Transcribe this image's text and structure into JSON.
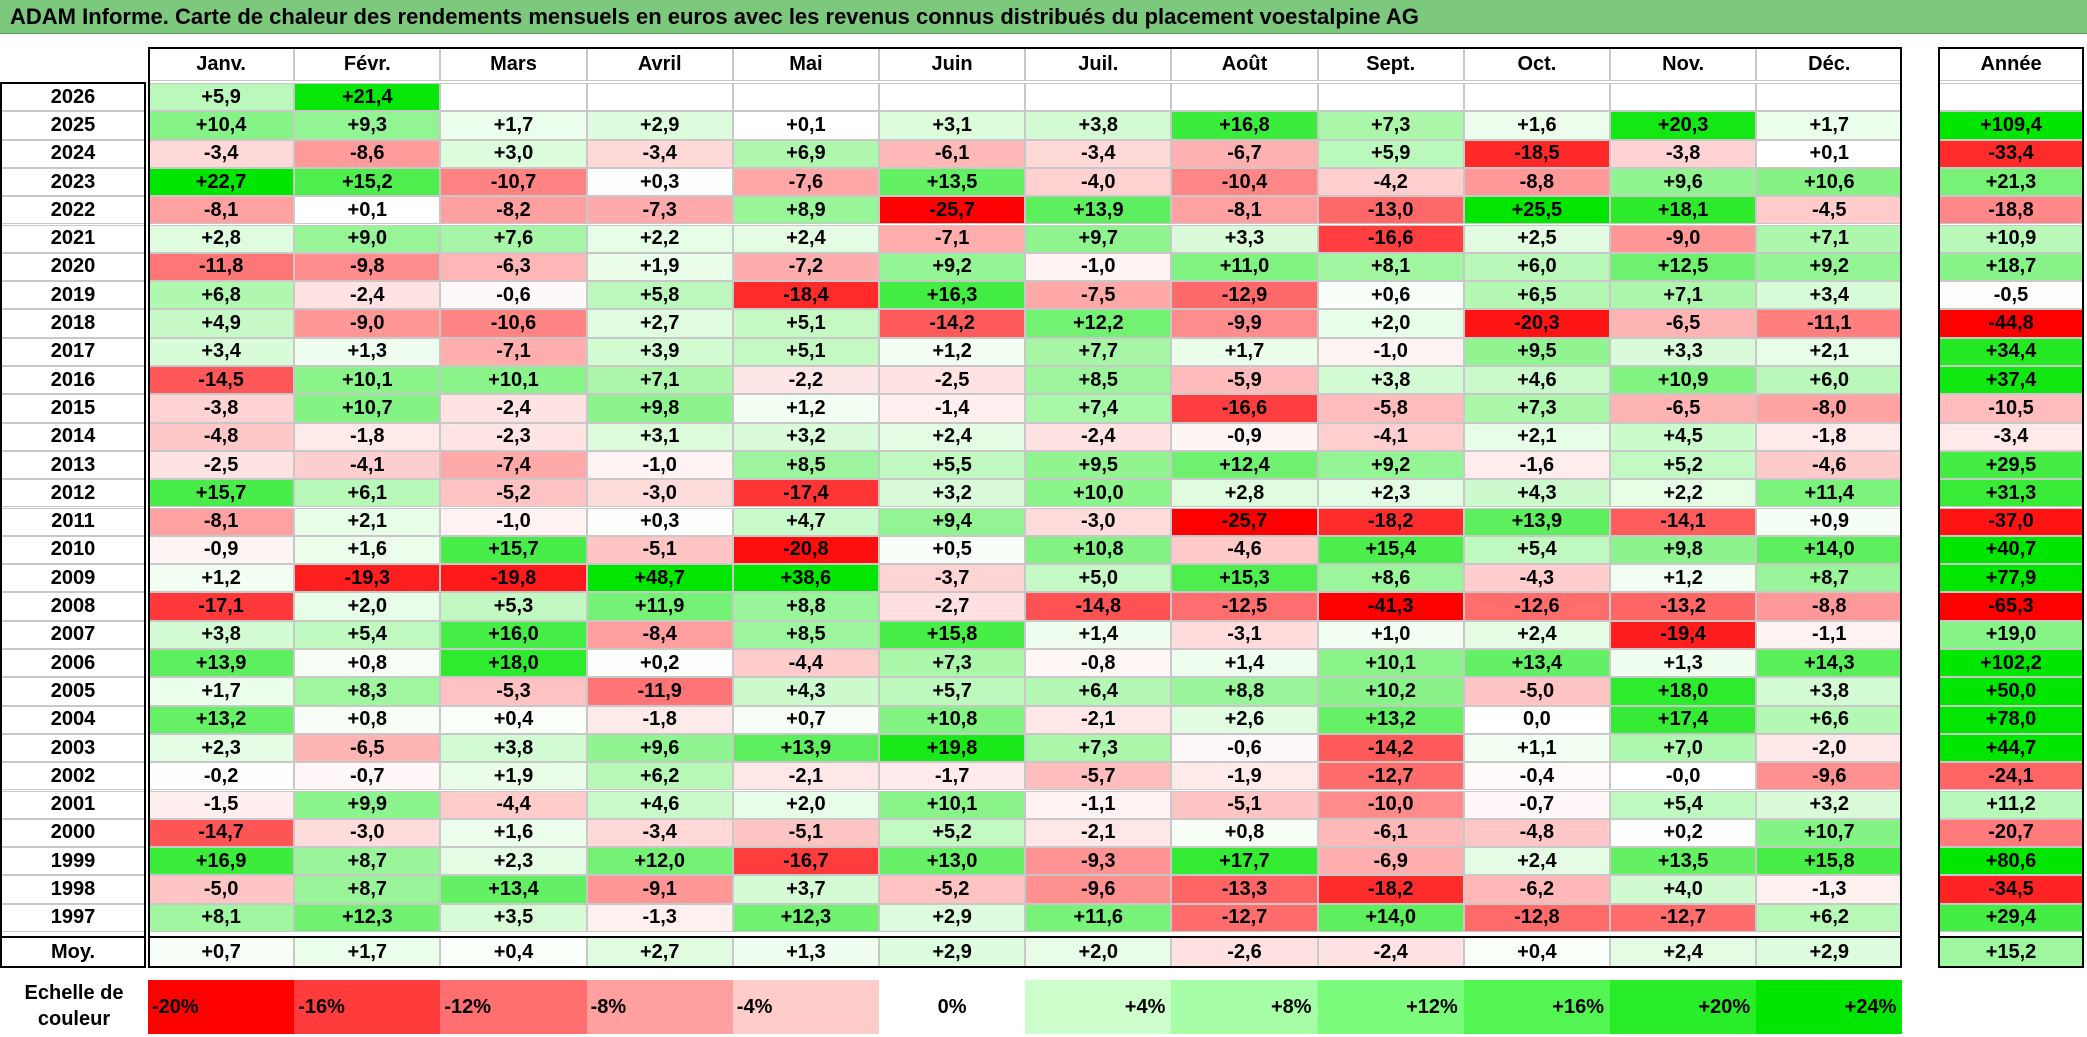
{
  "title": "ADAM Informe. Carte de chaleur des rendements mensuels en euros avec les revenus connus distribués du placement voestalpine AG",
  "chart_data": {
    "type": "heatmap",
    "title": "ADAM Informe. Carte de chaleur des rendements mensuels en euros avec les revenus connus distribués du placement voestalpine AG",
    "columns": [
      "Janv.",
      "Févr.",
      "Mars",
      "Avril",
      "Mai",
      "Juin",
      "Juil.",
      "Août",
      "Sept.",
      "Oct.",
      "Nov.",
      "Déc."
    ],
    "total_header": "Année",
    "rows": [
      {
        "year": "2026",
        "values": [
          "+5,9",
          "+21,4",
          "",
          "",
          "",
          "",
          "",
          "",
          "",
          "",
          "",
          ""
        ],
        "total": ""
      },
      {
        "year": "2025",
        "values": [
          "+10,4",
          "+9,3",
          "+1,7",
          "+2,9",
          "+0,1",
          "+3,1",
          "+3,8",
          "+16,8",
          "+7,3",
          "+1,6",
          "+20,3",
          "+1,7"
        ],
        "total": "+109,4"
      },
      {
        "year": "2024",
        "values": [
          "-3,4",
          "-8,6",
          "+3,0",
          "-3,4",
          "+6,9",
          "-6,1",
          "-3,4",
          "-6,7",
          "+5,9",
          "-18,5",
          "-3,8",
          "+0,1"
        ],
        "total": "-33,4"
      },
      {
        "year": "2023",
        "values": [
          "+22,7",
          "+15,2",
          "-10,7",
          "+0,3",
          "-7,6",
          "+13,5",
          "-4,0",
          "-10,4",
          "-4,2",
          "-8,8",
          "+9,6",
          "+10,6"
        ],
        "total": "+21,3"
      },
      {
        "year": "2022",
        "values": [
          "-8,1",
          "+0,1",
          "-8,2",
          "-7,3",
          "+8,9",
          "-25,7",
          "+13,9",
          "-8,1",
          "-13,0",
          "+25,5",
          "+18,1",
          "-4,5"
        ],
        "total": "-18,8"
      },
      {
        "year": "2021",
        "values": [
          "+2,8",
          "+9,0",
          "+7,6",
          "+2,2",
          "+2,4",
          "-7,1",
          "+9,7",
          "+3,3",
          "-16,6",
          "+2,5",
          "-9,0",
          "+7,1"
        ],
        "total": "+10,9"
      },
      {
        "year": "2020",
        "values": [
          "-11,8",
          "-9,8",
          "-6,3",
          "+1,9",
          "-7,2",
          "+9,2",
          "-1,0",
          "+11,0",
          "+8,1",
          "+6,0",
          "+12,5",
          "+9,2"
        ],
        "total": "+18,7"
      },
      {
        "year": "2019",
        "values": [
          "+6,8",
          "-2,4",
          "-0,6",
          "+5,8",
          "-18,4",
          "+16,3",
          "-7,5",
          "-12,9",
          "+0,6",
          "+6,5",
          "+7,1",
          "+3,4"
        ],
        "total": "-0,5"
      },
      {
        "year": "2018",
        "values": [
          "+4,9",
          "-9,0",
          "-10,6",
          "+2,7",
          "+5,1",
          "-14,2",
          "+12,2",
          "-9,9",
          "+2,0",
          "-20,3",
          "-6,5",
          "-11,1"
        ],
        "total": "-44,8"
      },
      {
        "year": "2017",
        "values": [
          "+3,4",
          "+1,3",
          "-7,1",
          "+3,9",
          "+5,1",
          "+1,2",
          "+7,7",
          "+1,7",
          "-1,0",
          "+9,5",
          "+3,3",
          "+2,1"
        ],
        "total": "+34,4"
      },
      {
        "year": "2016",
        "values": [
          "-14,5",
          "+10,1",
          "+10,1",
          "+7,1",
          "-2,2",
          "-2,5",
          "+8,5",
          "-5,9",
          "+3,8",
          "+4,6",
          "+10,9",
          "+6,0"
        ],
        "total": "+37,4"
      },
      {
        "year": "2015",
        "values": [
          "-3,8",
          "+10,7",
          "-2,4",
          "+9,8",
          "+1,2",
          "-1,4",
          "+7,4",
          "-16,6",
          "-5,8",
          "+7,3",
          "-6,5",
          "-8,0"
        ],
        "total": "-10,5"
      },
      {
        "year": "2014",
        "values": [
          "-4,8",
          "-1,8",
          "-2,3",
          "+3,1",
          "+3,2",
          "+2,4",
          "-2,4",
          "-0,9",
          "-4,1",
          "+2,1",
          "+4,5",
          "-1,8"
        ],
        "total": "-3,4"
      },
      {
        "year": "2013",
        "values": [
          "-2,5",
          "-4,1",
          "-7,4",
          "-1,0",
          "+8,5",
          "+5,5",
          "+9,5",
          "+12,4",
          "+9,2",
          "-1,6",
          "+5,2",
          "-4,6"
        ],
        "total": "+29,5"
      },
      {
        "year": "2012",
        "values": [
          "+15,7",
          "+6,1",
          "-5,2",
          "-3,0",
          "-17,4",
          "+3,2",
          "+10,0",
          "+2,8",
          "+2,3",
          "+4,3",
          "+2,2",
          "+11,4"
        ],
        "total": "+31,3"
      },
      {
        "year": "2011",
        "values": [
          "-8,1",
          "+2,1",
          "-1,0",
          "+0,3",
          "+4,7",
          "+9,4",
          "-3,0",
          "-25,7",
          "-18,2",
          "+13,9",
          "-14,1",
          "+0,9"
        ],
        "total": "-37,0"
      },
      {
        "year": "2010",
        "values": [
          "-0,9",
          "+1,6",
          "+15,7",
          "-5,1",
          "-20,8",
          "+0,5",
          "+10,8",
          "-4,6",
          "+15,4",
          "+5,4",
          "+9,8",
          "+14,0"
        ],
        "total": "+40,7"
      },
      {
        "year": "2009",
        "values": [
          "+1,2",
          "-19,3",
          "-19,8",
          "+48,7",
          "+38,6",
          "-3,7",
          "+5,0",
          "+15,3",
          "+8,6",
          "-4,3",
          "+1,2",
          "+8,7"
        ],
        "total": "+77,9"
      },
      {
        "year": "2008",
        "values": [
          "-17,1",
          "+2,0",
          "+5,3",
          "+11,9",
          "+8,8",
          "-2,7",
          "-14,8",
          "-12,5",
          "-41,3",
          "-12,6",
          "-13,2",
          "-8,8"
        ],
        "total": "-65,3"
      },
      {
        "year": "2007",
        "values": [
          "+3,8",
          "+5,4",
          "+16,0",
          "-8,4",
          "+8,5",
          "+15,8",
          "+1,4",
          "-3,1",
          "+1,0",
          "+2,4",
          "-19,4",
          "-1,1"
        ],
        "total": "+19,0"
      },
      {
        "year": "2006",
        "values": [
          "+13,9",
          "+0,8",
          "+18,0",
          "+0,2",
          "-4,4",
          "+7,3",
          "-0,8",
          "+1,4",
          "+10,1",
          "+13,4",
          "+1,3",
          "+14,3"
        ],
        "total": "+102,2"
      },
      {
        "year": "2005",
        "values": [
          "+1,7",
          "+8,3",
          "-5,3",
          "-11,9",
          "+4,3",
          "+5,7",
          "+6,4",
          "+8,8",
          "+10,2",
          "-5,0",
          "+18,0",
          "+3,8"
        ],
        "total": "+50,0"
      },
      {
        "year": "2004",
        "values": [
          "+13,2",
          "+0,8",
          "+0,4",
          "-1,8",
          "+0,7",
          "+10,8",
          "-2,1",
          "+2,6",
          "+13,2",
          "0,0",
          "+17,4",
          "+6,6"
        ],
        "total": "+78,0"
      },
      {
        "year": "2003",
        "values": [
          "+2,3",
          "-6,5",
          "+3,8",
          "+9,6",
          "+13,9",
          "+19,8",
          "+7,3",
          "-0,6",
          "-14,2",
          "+1,1",
          "+7,0",
          "-2,0"
        ],
        "total": "+44,7"
      },
      {
        "year": "2002",
        "values": [
          "-0,2",
          "-0,7",
          "+1,9",
          "+6,2",
          "-2,1",
          "-1,7",
          "-5,7",
          "-1,9",
          "-12,7",
          "-0,4",
          "-0,0",
          "-9,6"
        ],
        "total": "-24,1"
      },
      {
        "year": "2001",
        "values": [
          "-1,5",
          "+9,9",
          "-4,4",
          "+4,6",
          "+2,0",
          "+10,1",
          "-1,1",
          "-5,1",
          "-10,0",
          "-0,7",
          "+5,4",
          "+3,2"
        ],
        "total": "+11,2"
      },
      {
        "year": "2000",
        "values": [
          "-14,7",
          "-3,0",
          "+1,6",
          "-3,4",
          "-5,1",
          "+5,2",
          "-2,1",
          "+0,8",
          "-6,1",
          "-4,8",
          "+0,2",
          "+10,7"
        ],
        "total": "-20,7"
      },
      {
        "year": "1999",
        "values": [
          "+16,9",
          "+8,7",
          "+2,3",
          "+12,0",
          "-16,7",
          "+13,0",
          "-9,3",
          "+17,7",
          "-6,9",
          "+2,4",
          "+13,5",
          "+15,8"
        ],
        "total": "+80,6"
      },
      {
        "year": "1998",
        "values": [
          "-5,0",
          "+8,7",
          "+13,4",
          "-9,1",
          "+3,7",
          "-5,2",
          "-9,6",
          "-13,3",
          "-18,2",
          "-6,2",
          "+4,0",
          "-1,3"
        ],
        "total": "-34,5"
      },
      {
        "year": "1997",
        "values": [
          "+8,1",
          "+12,3",
          "+3,5",
          "-1,3",
          "+12,3",
          "+2,9",
          "+11,6",
          "-12,7",
          "+14,0",
          "-12,8",
          "-12,7",
          "+6,2"
        ],
        "total": "+29,4"
      }
    ],
    "average": {
      "label": "Moy.",
      "values": [
        "+0,7",
        "+1,7",
        "+0,4",
        "+2,7",
        "+1,3",
        "+2,9",
        "+2,0",
        "-2,6",
        "-2,4",
        "+0,4",
        "+2,4",
        "+2,9"
      ],
      "total": "+15,2"
    },
    "color_scale": {
      "label": "Echelle de couleur",
      "steps": [
        "-20%",
        "-16%",
        "-12%",
        "-8%",
        "-4%",
        "0%",
        "+4%",
        "+8%",
        "+12%",
        "+16%",
        "+20%",
        "+24%"
      ],
      "colors": [
        "#ff0000",
        "#ff3b3b",
        "#ff6f6f",
        "#ff9f9f",
        "#ffcccc",
        "#ffffff",
        "#ccffcc",
        "#a6ffa6",
        "#7cfc7c",
        "#52f552",
        "#2aed2a",
        "#00e600"
      ]
    },
    "colors": {
      "negative_max": "#ff0000",
      "neutral": "#ffffff",
      "positive_max": "#00e600",
      "title_bar": "#7cc87c"
    }
  }
}
